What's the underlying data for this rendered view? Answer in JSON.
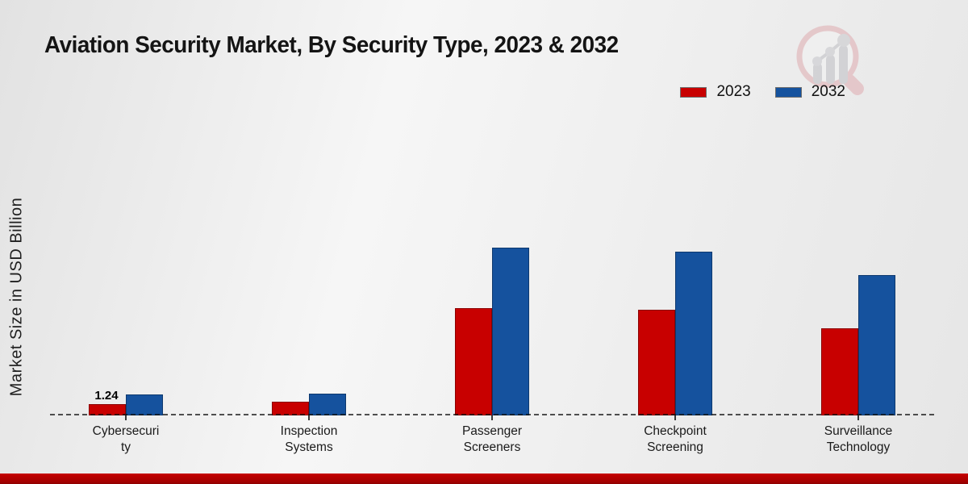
{
  "title": "Aviation Security Market, By Security Type, 2023 & 2032",
  "ylabel": "Market Size in USD Billion",
  "legend": [
    {
      "label": "2023",
      "color": "#c80000"
    },
    {
      "label": "2032",
      "color": "#15529e"
    }
  ],
  "annotation": {
    "text": "1.24",
    "category": "Cybersecurity",
    "series": "2023"
  },
  "colors": {
    "series_2023": "#c80000",
    "series_2032": "#15529e",
    "footer_bar": "#b00000",
    "baseline": "#2a2a2a",
    "background": "#ececec"
  },
  "watermark_icon": "magnifier-growth-chart-logo",
  "chart_data": {
    "type": "bar",
    "title": "Aviation Security Market, By Security Type, 2023 & 2032",
    "xlabel": "",
    "ylabel": "Market Size in USD Billion",
    "categories": [
      "Cybersecurity",
      "Inspection Systems",
      "Passenger Screeners",
      "Checkpoint Screening",
      "Surveillance Technology"
    ],
    "category_label_lines": [
      [
        "Cybersecuri",
        "ty"
      ],
      [
        "Inspection",
        "Systems"
      ],
      [
        "Passenger",
        "Screeners"
      ],
      [
        "Checkpoint",
        "Screening"
      ],
      [
        "Surveillance",
        "Technology"
      ]
    ],
    "series": [
      {
        "name": "2023",
        "color": "#c80000",
        "values": [
          1.24,
          1.5,
          11.8,
          11.6,
          9.6
        ]
      },
      {
        "name": "2032",
        "color": "#15529e",
        "values": [
          2.3,
          2.4,
          18.4,
          18.0,
          15.4
        ]
      }
    ],
    "data_labels": [
      {
        "category_index": 0,
        "series": "2023",
        "text": "1.24"
      }
    ],
    "ylim": [
      0,
      20
    ],
    "y_axis_ticks_visible": false,
    "grid": false,
    "legend_position": "top-right",
    "baseline_style": "dashed"
  }
}
